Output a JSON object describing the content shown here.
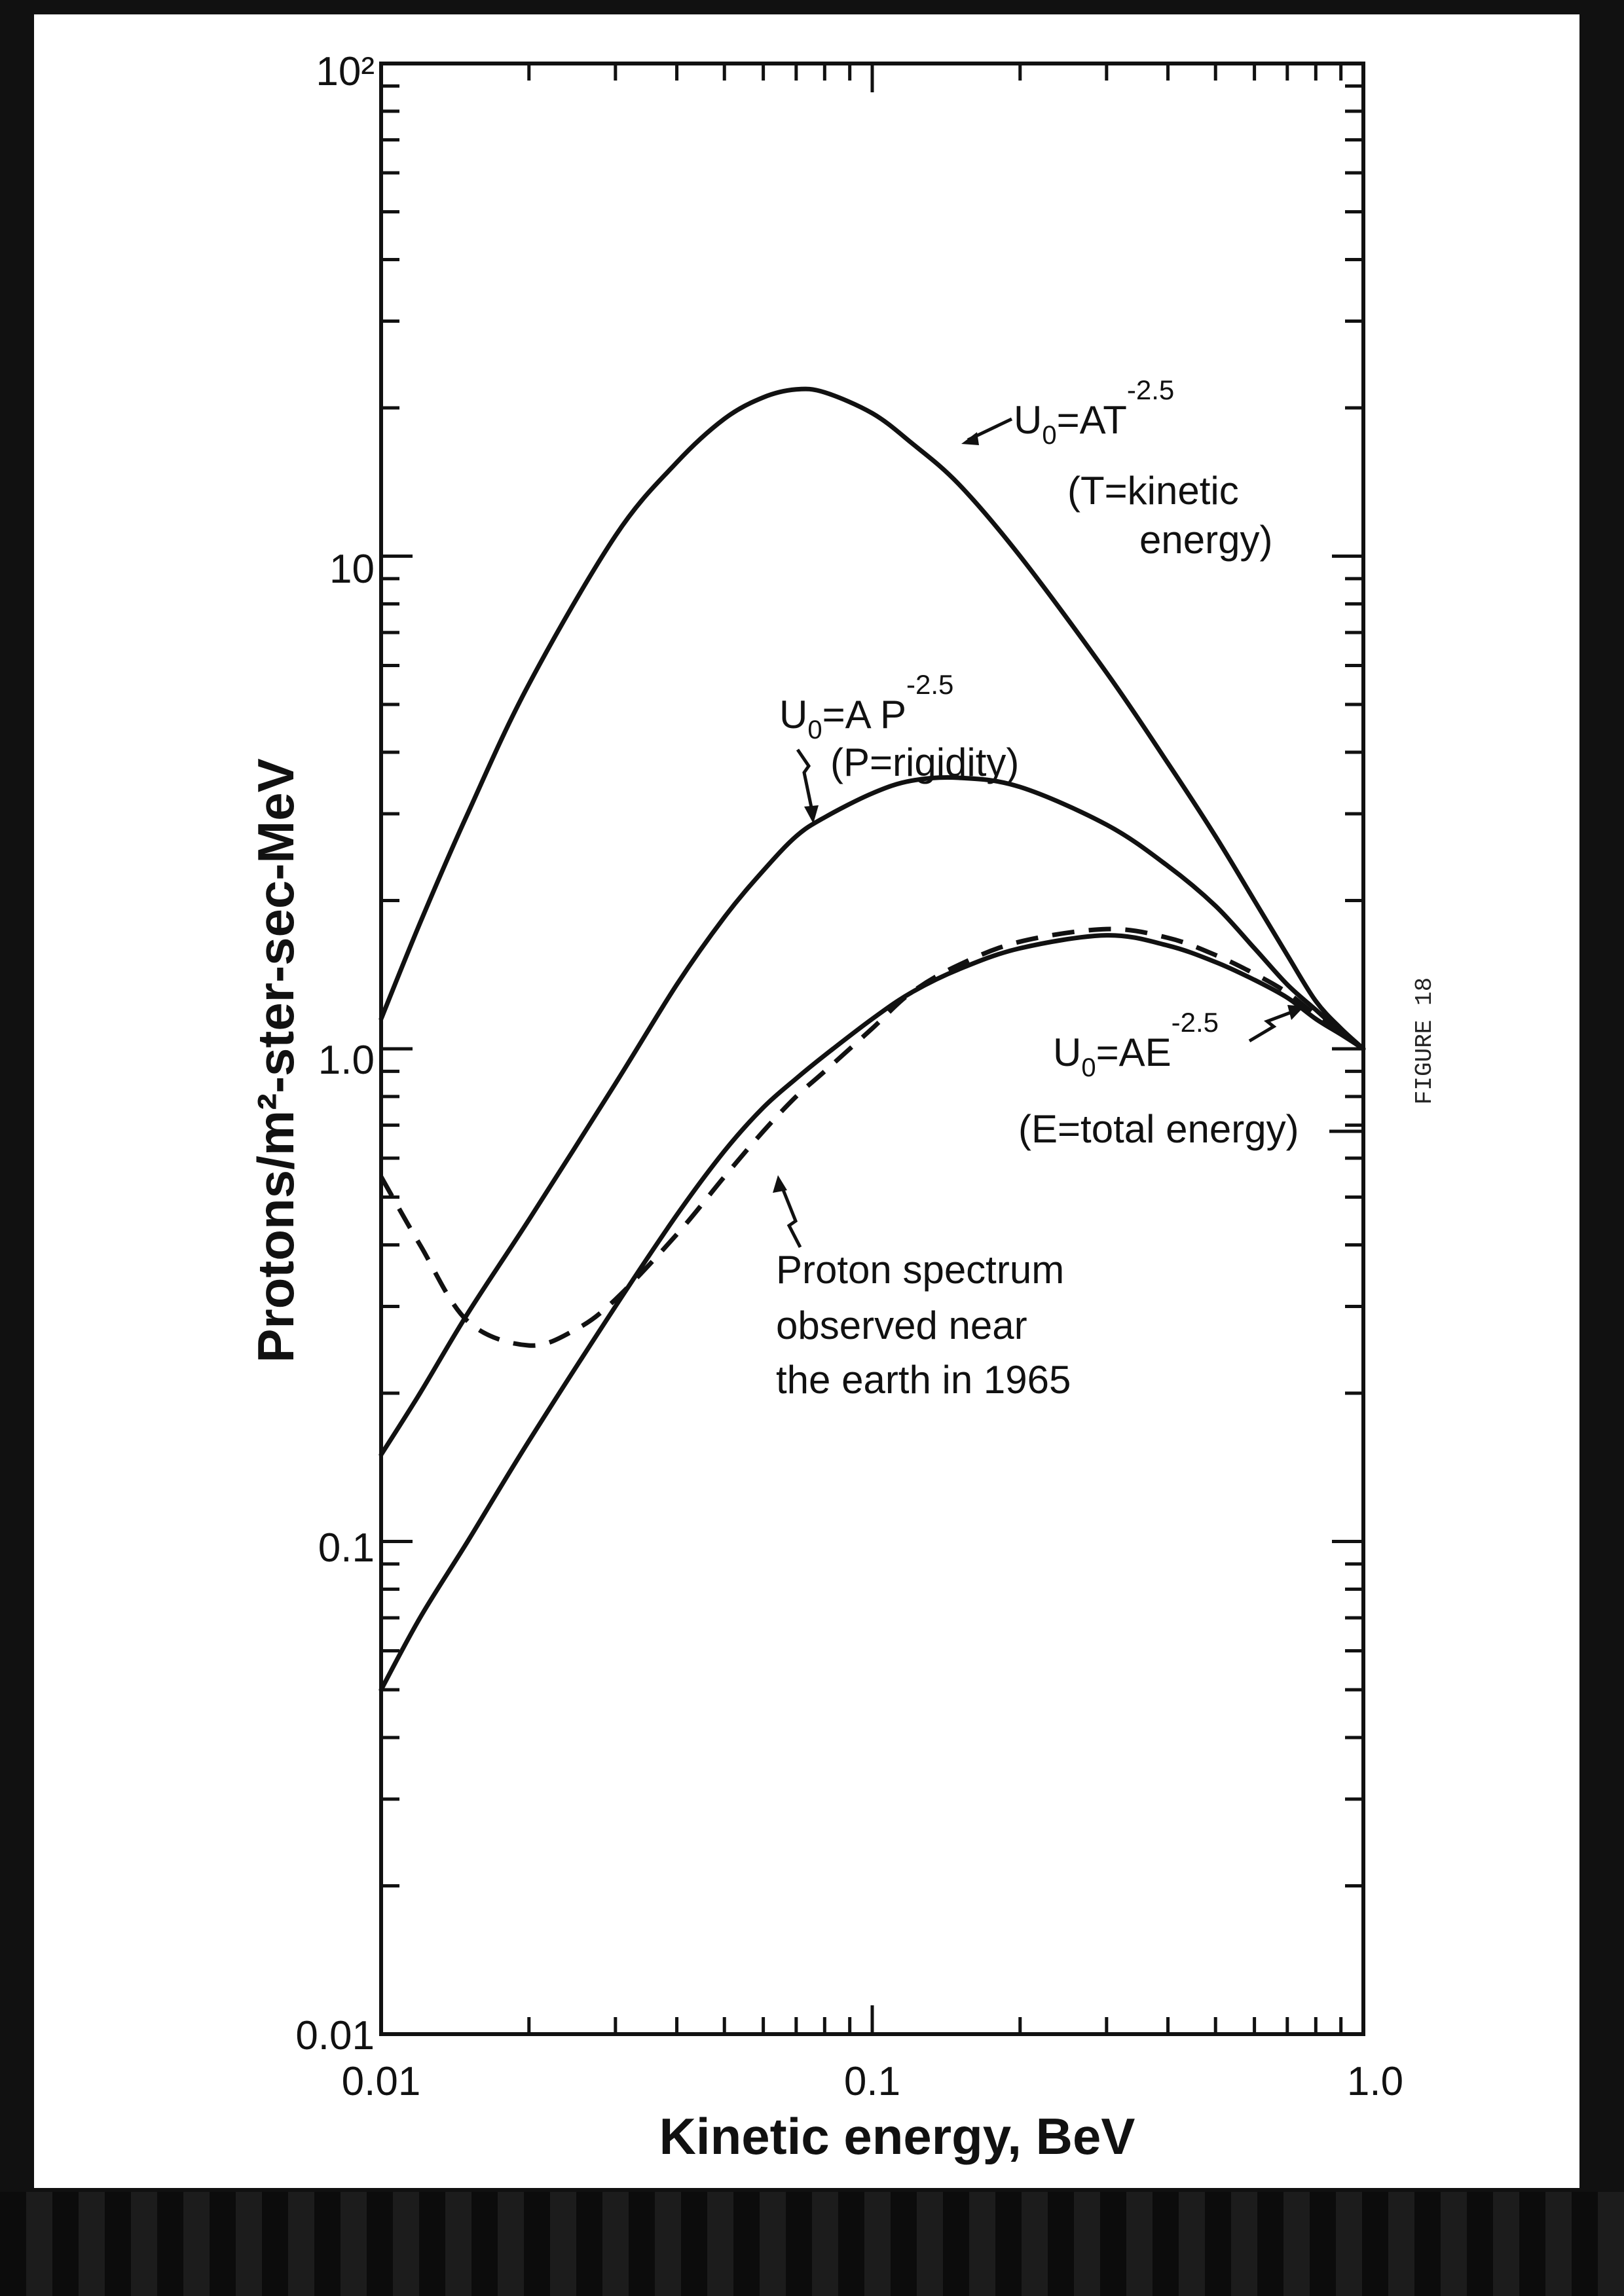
{
  "chart_data": {
    "type": "line",
    "x_scale": "log",
    "y_scale": "log",
    "xlim": [
      0.01,
      1.0
    ],
    "ylim": [
      0.01,
      100
    ],
    "xlabel": "Kinetic energy, BeV",
    "ylabel": "Protons/m²-ster-sec-MeV",
    "x_tick_labels": [
      "0.01",
      "0.1",
      "1.0"
    ],
    "y_tick_labels": [
      "0.01",
      "0.1",
      "1.0",
      "10",
      "10²"
    ],
    "figure_label": "FIGURE 18",
    "grid": false,
    "series": [
      {
        "key": "at",
        "style": "solid",
        "points": [
          [
            0.01,
            1.15
          ],
          [
            0.012,
            1.8
          ],
          [
            0.015,
            3.0
          ],
          [
            0.02,
            5.5
          ],
          [
            0.03,
            11
          ],
          [
            0.04,
            15.5
          ],
          [
            0.05,
            19
          ],
          [
            0.06,
            21
          ],
          [
            0.07,
            21.8
          ],
          [
            0.08,
            21.5
          ],
          [
            0.1,
            19.5
          ],
          [
            0.12,
            17
          ],
          [
            0.15,
            14
          ],
          [
            0.2,
            10
          ],
          [
            0.3,
            5.8
          ],
          [
            0.4,
            3.8
          ],
          [
            0.5,
            2.7
          ],
          [
            0.6,
            2.0
          ],
          [
            0.7,
            1.55
          ],
          [
            0.8,
            1.25
          ],
          [
            0.9,
            1.1
          ],
          [
            1.0,
            1.0
          ]
        ]
      },
      {
        "key": "ap",
        "style": "solid",
        "points": [
          [
            0.01,
            0.15
          ],
          [
            0.012,
            0.2
          ],
          [
            0.015,
            0.29
          ],
          [
            0.02,
            0.45
          ],
          [
            0.03,
            0.85
          ],
          [
            0.04,
            1.35
          ],
          [
            0.05,
            1.85
          ],
          [
            0.06,
            2.3
          ],
          [
            0.07,
            2.7
          ],
          [
            0.08,
            2.95
          ],
          [
            0.1,
            3.3
          ],
          [
            0.12,
            3.5
          ],
          [
            0.15,
            3.55
          ],
          [
            0.2,
            3.4
          ],
          [
            0.3,
            2.85
          ],
          [
            0.4,
            2.35
          ],
          [
            0.5,
            1.95
          ],
          [
            0.6,
            1.6
          ],
          [
            0.7,
            1.35
          ],
          [
            0.8,
            1.2
          ],
          [
            0.9,
            1.08
          ],
          [
            1.0,
            1.0
          ]
        ]
      },
      {
        "key": "ae",
        "style": "solid",
        "points": [
          [
            0.01,
            0.05
          ],
          [
            0.012,
            0.07
          ],
          [
            0.015,
            0.1
          ],
          [
            0.02,
            0.16
          ],
          [
            0.03,
            0.3
          ],
          [
            0.04,
            0.46
          ],
          [
            0.05,
            0.62
          ],
          [
            0.06,
            0.76
          ],
          [
            0.07,
            0.87
          ],
          [
            0.08,
            0.97
          ],
          [
            0.1,
            1.15
          ],
          [
            0.12,
            1.3
          ],
          [
            0.15,
            1.45
          ],
          [
            0.2,
            1.6
          ],
          [
            0.3,
            1.7
          ],
          [
            0.4,
            1.62
          ],
          [
            0.5,
            1.5
          ],
          [
            0.6,
            1.38
          ],
          [
            0.7,
            1.27
          ],
          [
            0.8,
            1.15
          ],
          [
            0.9,
            1.07
          ],
          [
            1.0,
            1.0
          ]
        ]
      },
      {
        "key": "observed",
        "style": "dashed",
        "points": [
          [
            0.01,
            0.55
          ],
          [
            0.012,
            0.4
          ],
          [
            0.015,
            0.28
          ],
          [
            0.02,
            0.25
          ],
          [
            0.025,
            0.27
          ],
          [
            0.03,
            0.31
          ],
          [
            0.04,
            0.42
          ],
          [
            0.05,
            0.55
          ],
          [
            0.06,
            0.68
          ],
          [
            0.07,
            0.8
          ],
          [
            0.08,
            0.9
          ],
          [
            0.1,
            1.1
          ],
          [
            0.12,
            1.3
          ],
          [
            0.15,
            1.48
          ],
          [
            0.2,
            1.65
          ],
          [
            0.3,
            1.75
          ],
          [
            0.4,
            1.68
          ],
          [
            0.5,
            1.55
          ],
          [
            0.6,
            1.42
          ],
          [
            0.7,
            1.3
          ],
          [
            0.8,
            1.17
          ],
          [
            0.9,
            1.08
          ],
          [
            1.0,
            1.0
          ]
        ]
      }
    ],
    "annotations": {
      "at": {
        "main": "U",
        "sub": "0",
        "rest": "=AT",
        "sup": "-2.5",
        "line2": "(T=kinetic",
        "line3": "energy)"
      },
      "ap": {
        "main": "U",
        "sub": "0",
        "rest": "=A P",
        "sup": "-2.5",
        "line2": "(P=rigidity)"
      },
      "ae": {
        "main": "U",
        "sub": "0",
        "rest": "=AE",
        "sup": "-2.5",
        "line2": "(E=total energy)"
      },
      "observed": {
        "line1": "Proton spectrum",
        "line2": "observed near",
        "line3": "the earth in 1965"
      }
    }
  }
}
